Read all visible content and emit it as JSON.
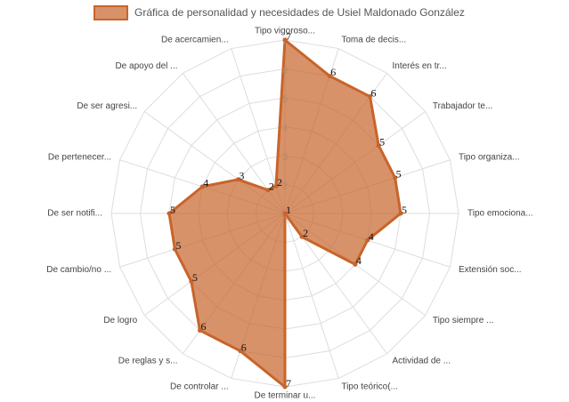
{
  "chart_data": {
    "type": "radar",
    "categories": [
      "Tipo vigoroso...",
      "Toma de decis...",
      "Interés en tr...",
      "Trabajador te...",
      "Tipo organiza...",
      "Tipo emociona...",
      "Extensión soc...",
      "Tipo siempre ...",
      "Actividad de ...",
      "Tipo teórico(...",
      "De terminar u...",
      "De controlar ...",
      "De reglas y s...",
      "De logro",
      "De cambio/no ...",
      "De ser notifi...",
      "De pertenecer...",
      "De ser agresi...",
      "De apoyo del ...",
      "De acercamien..."
    ],
    "series": [
      {
        "name": "Gráfica de personalidad y necesidades de Usiel Maldonado González",
        "color": "#c8642a",
        "values": [
          7,
          6,
          6,
          5,
          5,
          5,
          4,
          4,
          2,
          1,
          7,
          6,
          6,
          5,
          5,
          5,
          4,
          3,
          2,
          2
        ]
      }
    ],
    "rlim": [
      1,
      7
    ],
    "rticks": [
      1,
      2,
      3,
      4,
      5,
      6,
      7
    ],
    "grid": true,
    "legend": "top"
  }
}
